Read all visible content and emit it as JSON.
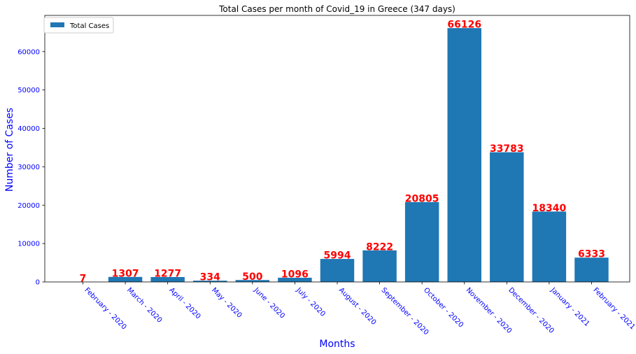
{
  "chart_data": {
    "type": "bar",
    "title": "Total Cases per month of Covid_19 in Greece (347 days)",
    "xlabel": "Months",
    "ylabel": "Number of Cases",
    "categories": [
      "February - 2020",
      "March - 2020",
      "April - 2020",
      "May - 2020",
      "June - 2020",
      "July - 2020",
      "August - 2020",
      "September - 2020",
      "October - 2020",
      "November - 2020",
      "December - 2020",
      "January - 2021",
      "February - 2021"
    ],
    "series": [
      {
        "name": "Total Cases",
        "values": [
          7,
          1307,
          1277,
          334,
          500,
          1096,
          5994,
          8222,
          20805,
          66126,
          33783,
          18340,
          6333
        ]
      }
    ],
    "data_labels": [
      "7",
      "1307",
      "1277",
      "334",
      "500",
      "1096",
      "5994",
      "8222",
      "20805",
      "66126",
      "33783",
      "18340",
      "6333"
    ],
    "yticks": [
      0,
      10000,
      20000,
      30000,
      40000,
      50000,
      60000
    ],
    "ytick_labels": [
      "0",
      "10000",
      "20000",
      "30000",
      "40000",
      "50000",
      "60000"
    ],
    "ylim": [
      0,
      69432
    ],
    "grid": false,
    "legend": {
      "position": "top-left",
      "entries": [
        "Total Cases"
      ]
    },
    "colors": {
      "bar": "#1f77b4",
      "data_label": "#ff0000",
      "tick_label": "#0000ff",
      "axis_label": "#0000ff"
    }
  }
}
